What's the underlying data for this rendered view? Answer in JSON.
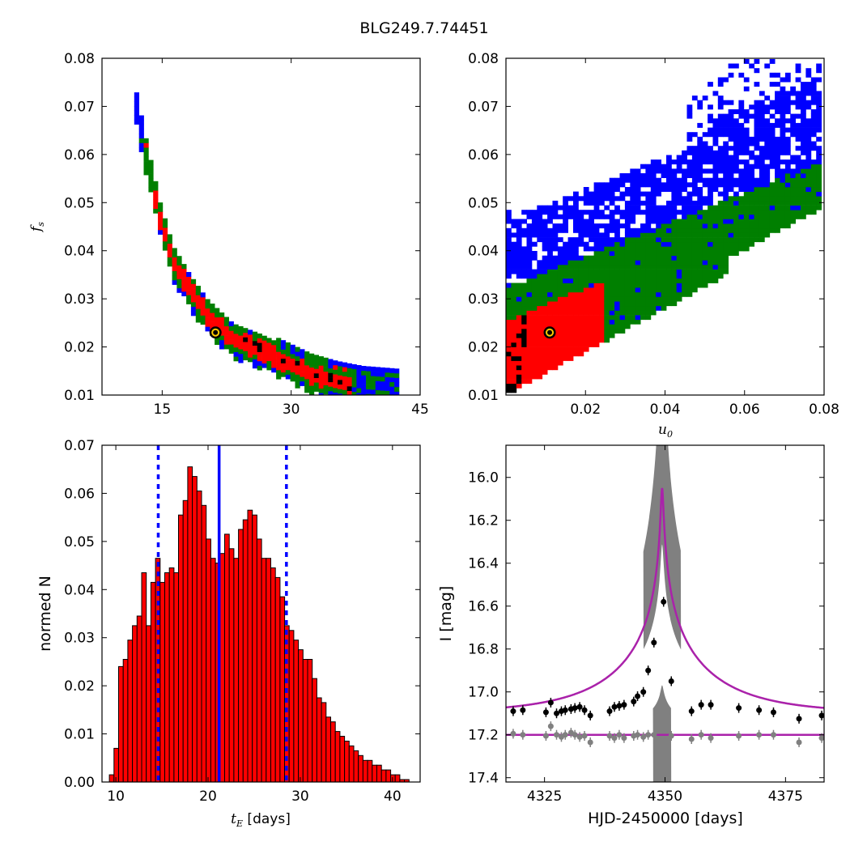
{
  "figure": {
    "title": "BLG249.7.74451"
  },
  "colors": {
    "blue": "#0000ff",
    "green": "#007f00",
    "red": "#ff0000",
    "black": "#000000",
    "bar_fill": "#ff0000",
    "model": "#aa22aa",
    "residual_gray": "#808080",
    "marker": "#ffcc00"
  },
  "chart_data": [
    {
      "id": "tE_fs",
      "type": "heatmap",
      "xlabel": "",
      "ylabel_sym": "f",
      "ylabel_sub": "s",
      "xlim": [
        8,
        45
      ],
      "ylim": [
        0.01,
        0.08
      ],
      "xticks": [
        15,
        30,
        45
      ],
      "yticks": [
        0.01,
        0.02,
        0.03,
        0.04,
        0.05,
        0.06,
        0.07,
        0.08
      ],
      "ytick_labels": [
        "0.01",
        "0.02",
        "0.03",
        "0.04",
        "0.05",
        "0.06",
        "0.07",
        "0.08"
      ],
      "xtick_labels": [
        "15",
        "30",
        "45"
      ],
      "levels": [
        "blue",
        "green",
        "red",
        "black"
      ],
      "band_center": [
        [
          11.5,
          0.071
        ],
        [
          13,
          0.058
        ],
        [
          14.5,
          0.046
        ],
        [
          16,
          0.037
        ],
        [
          18,
          0.031
        ],
        [
          20,
          0.026
        ],
        [
          23,
          0.021
        ],
        [
          26,
          0.019
        ],
        [
          29,
          0.0165
        ],
        [
          32,
          0.014
        ],
        [
          35,
          0.0125
        ],
        [
          38,
          0.0115
        ],
        [
          42,
          0.011
        ]
      ],
      "best_fit": {
        "tE": 21.2,
        "fs": 0.023
      }
    },
    {
      "id": "u0_fs",
      "type": "heatmap",
      "xlabel_sym": "u",
      "xlabel_sub": "0",
      "xlim": [
        0.0,
        0.08
      ],
      "ylim": [
        0.01,
        0.08
      ],
      "xticks": [
        0.02,
        0.04,
        0.06,
        0.08
      ],
      "xtick_labels": [
        "0.02",
        "0.04",
        "0.06",
        "0.08"
      ],
      "yticks": [
        0.01,
        0.02,
        0.03,
        0.04,
        0.05,
        0.06,
        0.07,
        0.08
      ],
      "ytick_labels": [
        "0.01",
        "0.02",
        "0.03",
        "0.04",
        "0.05",
        "0.06",
        "0.07",
        "0.08"
      ],
      "levels": [
        "blue",
        "green",
        "red",
        "black"
      ],
      "best_fit": {
        "u0": 0.011,
        "fs": 0.023
      }
    },
    {
      "id": "tE_hist",
      "type": "bar",
      "xlabel_sym": "t",
      "xlabel_sub": "E",
      "xlabel_unit": "[days]",
      "ylabel": "normed N",
      "xlim": [
        8.5,
        43
      ],
      "ylim": [
        0.0,
        0.07
      ],
      "xticks": [
        10,
        20,
        30,
        40
      ],
      "xtick_labels": [
        "10",
        "20",
        "30",
        "40"
      ],
      "yticks": [
        0.0,
        0.01,
        0.02,
        0.03,
        0.04,
        0.05,
        0.06,
        0.07
      ],
      "ytick_labels": [
        "0.00",
        "0.01",
        "0.02",
        "0.03",
        "0.04",
        "0.05",
        "0.06",
        "0.07"
      ],
      "bin_start": 9.3,
      "bin_width": 0.5,
      "values": [
        0.0015,
        0.007,
        0.024,
        0.0255,
        0.0295,
        0.0325,
        0.0345,
        0.0435,
        0.0325,
        0.0415,
        0.0465,
        0.0415,
        0.0435,
        0.0445,
        0.0435,
        0.0555,
        0.0585,
        0.0655,
        0.0635,
        0.0605,
        0.0575,
        0.0505,
        0.0465,
        0.0455,
        0.0475,
        0.0515,
        0.0485,
        0.0465,
        0.0525,
        0.0545,
        0.0565,
        0.0555,
        0.0505,
        0.0465,
        0.0465,
        0.0445,
        0.0425,
        0.0385,
        0.0325,
        0.0315,
        0.0295,
        0.0275,
        0.0255,
        0.0255,
        0.0215,
        0.0175,
        0.0165,
        0.0135,
        0.0125,
        0.0105,
        0.0095,
        0.0085,
        0.0075,
        0.0065,
        0.0055,
        0.0045,
        0.0045,
        0.0035,
        0.0035,
        0.0025,
        0.0025,
        0.0015,
        0.0015,
        0.0005,
        0.0005
      ],
      "median": 21.2,
      "lower": 14.6,
      "upper": 28.5
    },
    {
      "id": "lightcurve",
      "type": "scatter",
      "xlabel": "HJD-2450000 [days]",
      "ylabel": "I [mag]",
      "xlim": [
        4317,
        4383
      ],
      "ylim": [
        17.42,
        15.85
      ],
      "xticks": [
        4325,
        4350,
        4375
      ],
      "xtick_labels": [
        "4325",
        "4350",
        "4375"
      ],
      "yticks": [
        16.0,
        16.2,
        16.4,
        16.6,
        16.8,
        17.0,
        17.2,
        17.4
      ],
      "ytick_labels": [
        "16.0",
        "16.2",
        "16.4",
        "16.6",
        "16.8",
        "17.0",
        "17.2",
        "17.4"
      ],
      "model": {
        "t0": 4349.4,
        "tE": 21.2,
        "u0": 0.011,
        "fs": 0.023,
        "base": 17.1,
        "peak_mag": 16.05
      },
      "resid_offset": 17.2,
      "data_points": [
        [
          4318.5,
          17.09
        ],
        [
          4320.5,
          17.085
        ],
        [
          4325.3,
          17.095
        ],
        [
          4326.3,
          17.05
        ],
        [
          4327.5,
          17.1
        ],
        [
          4328.5,
          17.09
        ],
        [
          4329.3,
          17.085
        ],
        [
          4330.5,
          17.08
        ],
        [
          4331.3,
          17.075
        ],
        [
          4332.3,
          17.07
        ],
        [
          4333.3,
          17.085
        ],
        [
          4334.5,
          17.11
        ],
        [
          4338.5,
          17.09
        ],
        [
          4339.5,
          17.07
        ],
        [
          4340.5,
          17.065
        ],
        [
          4341.5,
          17.06
        ],
        [
          4343.5,
          17.045
        ],
        [
          4344.3,
          17.02
        ],
        [
          4345.5,
          17.0
        ],
        [
          4346.5,
          16.9
        ],
        [
          4347.7,
          16.77
        ],
        [
          4349.7,
          16.58
        ],
        [
          4351.3,
          16.95
        ],
        [
          4355.5,
          17.09
        ],
        [
          4357.5,
          17.06
        ],
        [
          4359.5,
          17.06
        ],
        [
          4365.3,
          17.075
        ],
        [
          4369.5,
          17.085
        ],
        [
          4372.5,
          17.095
        ],
        [
          4377.8,
          17.125
        ],
        [
          4382.5,
          17.11
        ]
      ],
      "resid_points": [
        [
          4318.5,
          17.195
        ],
        [
          4320.5,
          17.2
        ],
        [
          4325.3,
          17.205
        ],
        [
          4326.3,
          17.16
        ],
        [
          4327.5,
          17.2
        ],
        [
          4328.5,
          17.21
        ],
        [
          4329.3,
          17.2
        ],
        [
          4330.5,
          17.19
        ],
        [
          4331.3,
          17.2
        ],
        [
          4332.3,
          17.21
        ],
        [
          4333.3,
          17.205
        ],
        [
          4334.5,
          17.235
        ],
        [
          4338.5,
          17.205
        ],
        [
          4339.5,
          17.215
        ],
        [
          4340.5,
          17.2
        ],
        [
          4341.5,
          17.215
        ],
        [
          4343.5,
          17.205
        ],
        [
          4344.3,
          17.2
        ],
        [
          4345.5,
          17.21
        ],
        [
          4346.5,
          17.2
        ],
        [
          4347.7,
          17.2
        ],
        [
          4351.3,
          17.205
        ],
        [
          4355.5,
          17.22
        ],
        [
          4357.5,
          17.2
        ],
        [
          4359.5,
          17.215
        ],
        [
          4365.3,
          17.205
        ],
        [
          4369.5,
          17.2
        ],
        [
          4372.5,
          17.2
        ],
        [
          4377.8,
          17.235
        ],
        [
          4382.5,
          17.215
        ]
      ]
    }
  ]
}
